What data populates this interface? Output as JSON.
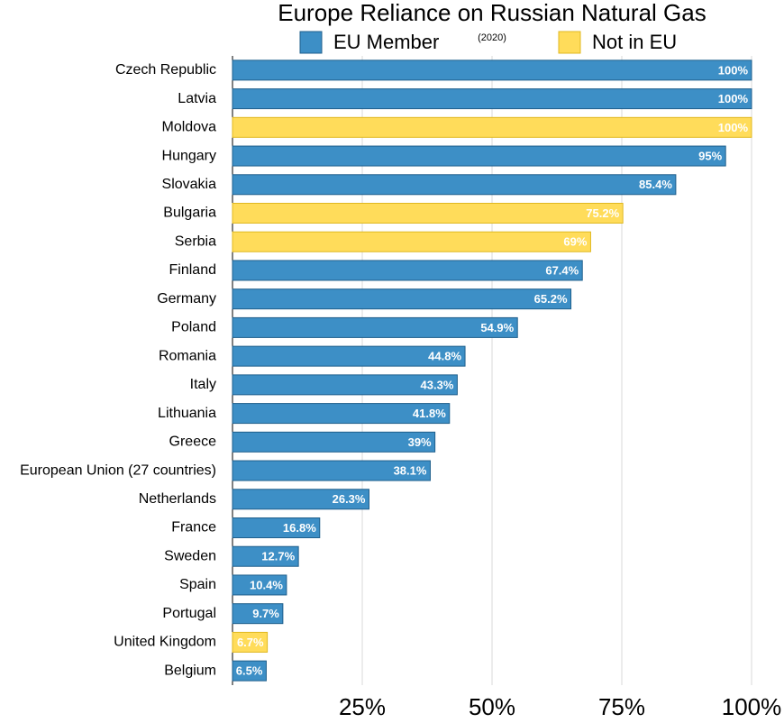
{
  "chart_data": {
    "type": "bar",
    "orientation": "horizontal",
    "title": "Europe Reliance on Russian Natural Gas",
    "subtitle": "(2020)",
    "categories": [
      "Czech Republic",
      "Latvia",
      "Moldova",
      "Hungary",
      "Slovakia",
      "Bulgaria",
      "Serbia",
      "Finland",
      "Germany",
      "Poland",
      "Romania",
      "Italy",
      "Lithuania",
      "Greece",
      "European Union (27 countries)",
      "Netherlands",
      "France",
      "Sweden",
      "Spain",
      "Portugal",
      "United Kingdom",
      "Belgium"
    ],
    "series": [
      {
        "name": "EU Member",
        "color": "#3d8fc6",
        "values": [
          100,
          100,
          null,
          95,
          85.4,
          null,
          null,
          67.4,
          65.2,
          54.9,
          44.8,
          43.3,
          41.8,
          39,
          38.1,
          26.3,
          16.8,
          12.7,
          10.4,
          9.7,
          null,
          6.5
        ],
        "value_labels": [
          "100%",
          "100%",
          null,
          "95%",
          "85.4%",
          null,
          null,
          "67.4%",
          "65.2%",
          "54.9%",
          "44.8%",
          "43.3%",
          "41.8%",
          "39%",
          "38.1%",
          "26.3%",
          "16.8%",
          "12.7%",
          "10.4%",
          "9.7%",
          null,
          "6.5%"
        ]
      },
      {
        "name": "Not in EU",
        "color": "#ffdc5a",
        "values": [
          null,
          null,
          100,
          null,
          null,
          75.2,
          69,
          null,
          null,
          null,
          null,
          null,
          null,
          null,
          null,
          null,
          null,
          null,
          null,
          null,
          6.7,
          null
        ],
        "value_labels": [
          null,
          null,
          "100%",
          null,
          null,
          "75.2%",
          "69%",
          null,
          null,
          null,
          null,
          null,
          null,
          null,
          null,
          null,
          null,
          null,
          null,
          null,
          "6.7%",
          null
        ]
      }
    ],
    "xlim": [
      0,
      100
    ],
    "xticks": [
      {
        "value": 25,
        "label": "25%"
      },
      {
        "value": 50,
        "label": "50%"
      },
      {
        "value": 75,
        "label": "75%"
      },
      {
        "value": 100,
        "label": "100%"
      }
    ],
    "grid": true,
    "legend": "top"
  }
}
